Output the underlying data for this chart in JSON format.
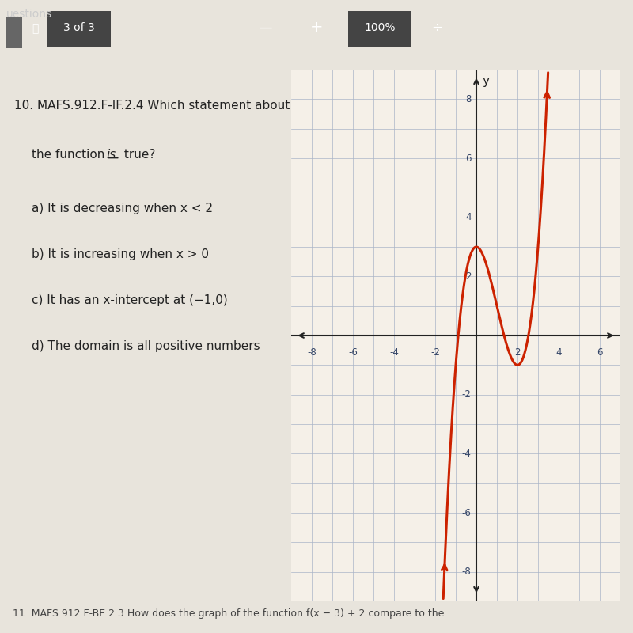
{
  "background_color": "#f5f0e8",
  "grid_color": "#aab4c8",
  "axis_color": "#222222",
  "curve_color": "#cc2200",
  "curve_linewidth": 2.2,
  "xlim": [
    -9,
    7
  ],
  "ylim": [
    -9,
    9
  ],
  "xticks": [
    -8,
    -6,
    -4,
    -2,
    2,
    4,
    6
  ],
  "yticks": [
    -8,
    -6,
    -4,
    -2,
    2,
    4,
    6,
    8
  ],
  "grid_linewidth": 0.5,
  "text_question": "10. MAFS.912.F-IF.2.4 Which statement about",
  "text_line2a": "the function ",
  "text_line2b": "is",
  "text_line2c": " true?",
  "text_a": "a) It is decreasing when x < 2",
  "text_b": "b) It is increasing when x > 0",
  "text_c": "c) It has an x-intercept at (−1,0)",
  "text_d": "d) The domain is all positive numbers",
  "text_bottom": "11. MAFS.912.F-BE.2.3 How does the graph of the function f(x − 3) + 2 compare to the",
  "text_toolbar_nav": "3 of 3",
  "text_toolbar_pct": "100%",
  "text_toolbar_questions": "uestions",
  "page_bg": "#e8e4dc",
  "toolbar_bg": "#2b2b2b",
  "y_label": "y"
}
